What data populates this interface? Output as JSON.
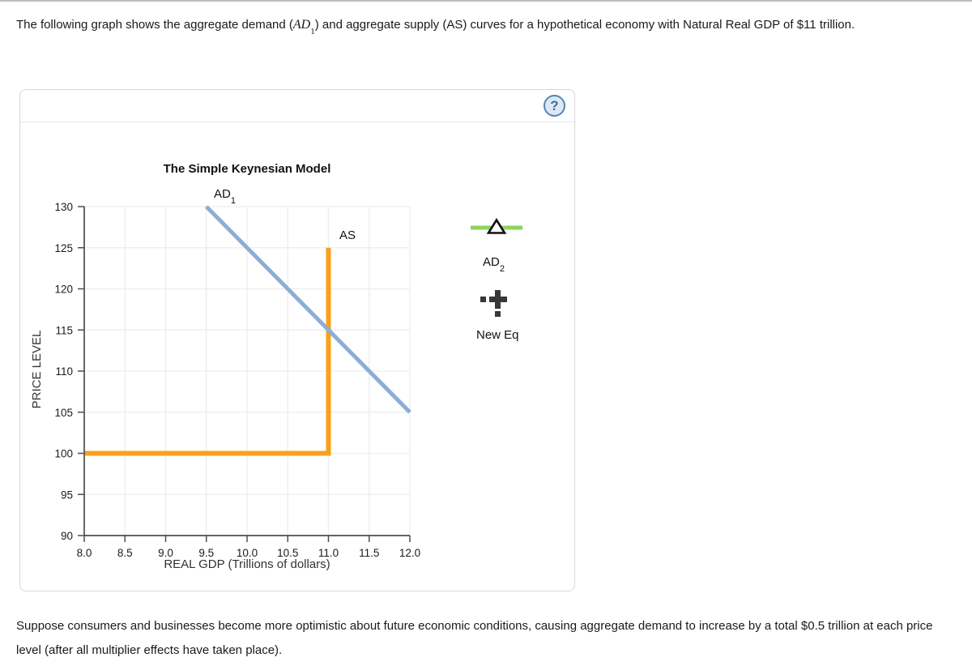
{
  "intro": {
    "text_before_math": "The following graph shows the aggregate demand (",
    "math_main": "AD",
    "math_sub": "1",
    "text_after_math": ") and aggregate supply (AS) curves for a hypothetical economy with Natural Real GDP of $11 trillion."
  },
  "panel": {
    "help_label": "?"
  },
  "chart_data": {
    "type": "line",
    "title": "The Simple Keynesian Model",
    "xlabel": "REAL GDP (Trillions of dollars)",
    "ylabel": "PRICE LEVEL",
    "xlim": [
      8.0,
      12.0
    ],
    "ylim": [
      90,
      130
    ],
    "grid": true,
    "x_ticks": [
      "8.0",
      "8.5",
      "9.0",
      "9.5",
      "10.0",
      "10.5",
      "11.0",
      "11.5",
      "12.0"
    ],
    "y_ticks": [
      "90",
      "95",
      "100",
      "105",
      "110",
      "115",
      "120",
      "125",
      "130"
    ],
    "colors": {
      "grid": "#ededed",
      "axis": "#4d4d4d",
      "tick_text": "#1a1a1a"
    },
    "series": [
      {
        "name": "AS",
        "color": "#F9A11B",
        "width": 6,
        "points": [
          [
            8.0,
            100
          ],
          [
            11.0,
            100
          ],
          [
            11.0,
            125
          ]
        ]
      },
      {
        "name": "AD1",
        "color": "#8CADD6",
        "width": 5,
        "points": [
          [
            9.5,
            130
          ],
          [
            12.0,
            105
          ]
        ]
      }
    ],
    "labels": {
      "ad1": {
        "main": "AD",
        "sub": "1"
      },
      "as": "AS"
    }
  },
  "tools": {
    "ad2": {
      "label_main": "AD",
      "label_sub": "2",
      "line_color": "#8CD45A",
      "marker": "triangle"
    },
    "new_eq": {
      "label": "New Eq",
      "marker": "dashed-cross",
      "marker_color": "#383838"
    }
  },
  "followup": {
    "text": "Suppose consumers and businesses become more optimistic about future economic conditions, causing aggregate demand to increase by a total $0.5 trillion at each price level (after all multiplier effects have taken place)."
  }
}
